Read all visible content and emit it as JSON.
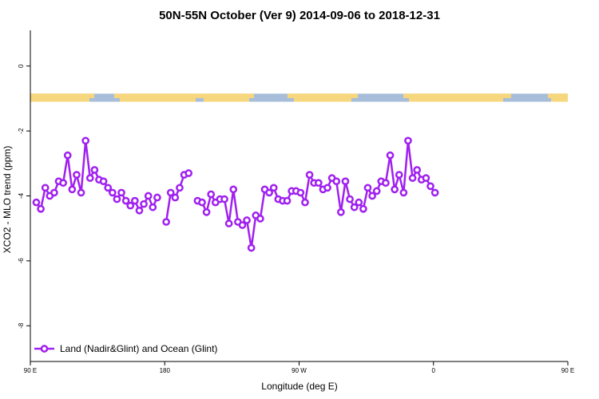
{
  "chart_data": {
    "type": "line",
    "title": "50N-55N October (Ver 9)   2014-09-06 to 2018-12-31",
    "xlabel": "Longitude (deg E)",
    "ylabel": "XCO2 - MLO trend (ppm)",
    "xlim": [
      90,
      450
    ],
    "ylim": [
      -9.1,
      1.1
    ],
    "x_ticks": [
      {
        "value": 90,
        "label": "90 E"
      },
      {
        "value": 180,
        "label": "180"
      },
      {
        "value": 270,
        "label": "90 W"
      },
      {
        "value": 360,
        "label": "0"
      },
      {
        "value": 450,
        "label": "90 E"
      },
      {
        "value": 540,
        "label": "180"
      }
    ],
    "y_ticks": [
      {
        "value": 0,
        "label": "0"
      },
      {
        "value": -2,
        "label": "-2"
      },
      {
        "value": -4,
        "label": "-4"
      },
      {
        "value": -6,
        "label": "-6"
      },
      {
        "value": -8,
        "label": "-8"
      }
    ],
    "legend": {
      "position": "bottom-left",
      "entries": [
        "Land (Nadir&Glint) and Ocean (Glint)"
      ]
    },
    "series": [
      {
        "name": "Land (Nadir&Glint) and Ocean (Glint)",
        "color": "#a020f0",
        "points": [
          [
            94,
            -4.2
          ],
          [
            97,
            -4.4
          ],
          [
            100,
            -3.75
          ],
          [
            103,
            -4.0
          ],
          [
            106,
            -3.9
          ],
          [
            109,
            -3.55
          ],
          [
            112,
            -3.6
          ],
          [
            115,
            -2.75
          ],
          [
            118,
            -3.8
          ],
          [
            121,
            -3.35
          ],
          [
            124,
            -3.9
          ],
          [
            127,
            -2.3
          ],
          [
            130,
            -3.45
          ],
          [
            133,
            -3.2
          ],
          [
            136,
            -3.5
          ],
          [
            139,
            -3.55
          ],
          [
            142,
            -3.75
          ],
          [
            145,
            -3.9
          ],
          [
            148,
            -4.1
          ],
          [
            151,
            -3.9
          ],
          [
            154,
            -4.15
          ],
          [
            157,
            -4.3
          ],
          [
            160,
            -4.15
          ],
          [
            163,
            -4.45
          ],
          [
            166,
            -4.25
          ],
          [
            169,
            -4.0
          ],
          [
            172,
            -4.35
          ],
          [
            175,
            -4.05
          ],
          [
            181,
            -4.8
          ],
          [
            184,
            -3.9
          ],
          [
            187,
            -4.05
          ],
          [
            190,
            -3.75
          ],
          [
            193,
            -3.35
          ],
          [
            196,
            -3.3
          ],
          [
            202,
            -4.15
          ],
          [
            205,
            -4.2
          ],
          [
            208,
            -4.5
          ],
          [
            211,
            -3.95
          ],
          [
            214,
            -4.2
          ],
          [
            217,
            -4.1
          ],
          [
            220,
            -4.1
          ],
          [
            223,
            -4.85
          ],
          [
            226,
            -3.8
          ],
          [
            229,
            -4.8
          ],
          [
            232,
            -4.9
          ],
          [
            235,
            -4.75
          ],
          [
            238,
            -5.6
          ],
          [
            241,
            -4.6
          ],
          [
            244,
            -4.7
          ],
          [
            247,
            -3.8
          ],
          [
            250,
            -3.9
          ],
          [
            253,
            -3.75
          ],
          [
            256,
            -4.1
          ],
          [
            259,
            -4.15
          ],
          [
            262,
            -4.15
          ],
          [
            265,
            -3.85
          ],
          [
            268,
            -3.85
          ],
          [
            271,
            -3.9
          ],
          [
            274,
            -4.2
          ],
          [
            277,
            -3.35
          ],
          [
            280,
            -3.6
          ],
          [
            283,
            -3.6
          ],
          [
            286,
            -3.8
          ],
          [
            289,
            -3.75
          ],
          [
            292,
            -3.45
          ],
          [
            295,
            -3.55
          ],
          [
            298,
            -4.5
          ],
          [
            301,
            -3.55
          ],
          [
            304,
            -4.1
          ],
          [
            307,
            -4.35
          ],
          [
            310,
            -4.2
          ],
          [
            313,
            -4.4
          ],
          [
            316,
            -3.75
          ],
          [
            319,
            -4.0
          ],
          [
            322,
            -3.85
          ],
          [
            325,
            -3.55
          ],
          [
            328,
            -3.6
          ],
          [
            331,
            -2.75
          ],
          [
            334,
            -3.8
          ],
          [
            337,
            -3.35
          ],
          [
            340,
            -3.9
          ],
          [
            343,
            -2.3
          ],
          [
            346,
            -3.45
          ],
          [
            349,
            -3.2
          ],
          [
            352,
            -3.5
          ],
          [
            355,
            -3.45
          ],
          [
            358,
            -3.7
          ],
          [
            361,
            -3.9
          ]
        ]
      }
    ],
    "surface_strip": {
      "y_from": -0.85,
      "y_to": -1.1,
      "land_color": "#f7d77e",
      "ocean_color": "#a8bdd9"
    }
  }
}
